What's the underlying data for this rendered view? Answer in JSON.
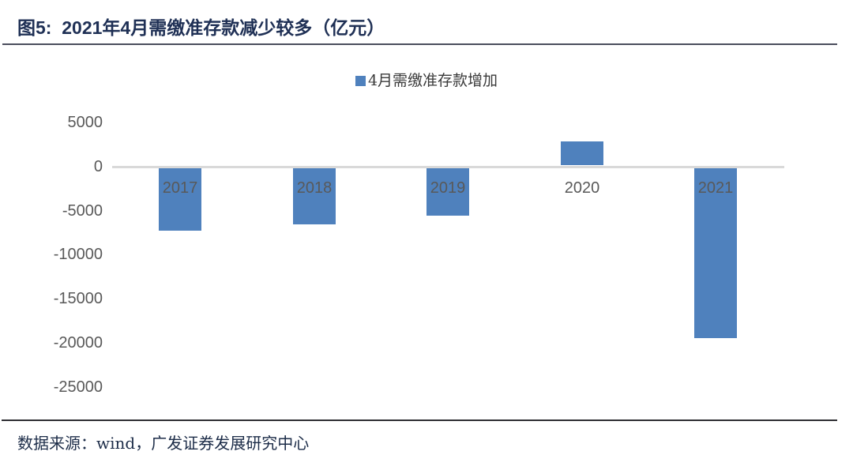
{
  "header": {
    "title": "图5:  2021年4月需缴准存款减少较多（亿元）"
  },
  "footer": {
    "source": "数据来源：wind，广发证券发展研究中心"
  },
  "chart_data": {
    "type": "bar",
    "title": "2021年4月需缴准存款减少较多（亿元）",
    "legend": [
      "4月需缴准存款增加"
    ],
    "legend_position": "top-center",
    "categories": [
      "2017",
      "2018",
      "2019",
      "2020",
      "2021"
    ],
    "values": [
      -7100,
      -6350,
      -5400,
      2700,
      -19300
    ],
    "y_ticks": [
      5000,
      0,
      -5000,
      -10000,
      -15000,
      -20000,
      -25000
    ],
    "ylim": [
      -25000,
      5000
    ],
    "xlabel": "",
    "ylabel": "",
    "grid": false,
    "bar_color": "#4f81bd",
    "zero_line_color": "#d9d9d9",
    "tick_label_color": "#595959"
  }
}
